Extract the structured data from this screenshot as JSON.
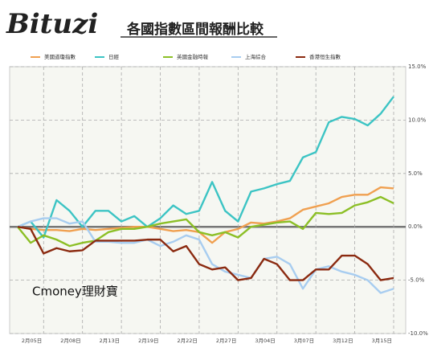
{
  "chart_data": {
    "type": "line",
    "brand": "Bituzi",
    "title": "各國指數區間報酬比較",
    "watermark": "Cmoney理財寶",
    "categories": [
      null,
      null,
      "2月05日",
      null,
      null,
      "2月08日",
      null,
      null,
      "2月13日",
      null,
      null,
      "2月19日",
      null,
      null,
      "2月22日",
      null,
      null,
      "2月27日",
      null,
      null,
      "3月04日",
      null,
      null,
      "3月07日",
      null,
      null,
      "3月12日",
      null,
      null,
      "3月15日"
    ],
    "series": [
      {
        "name": "美國道瓊指數",
        "color": "#f0a050",
        "values": [
          0,
          -0.2,
          -0.3,
          -0.3,
          -0.4,
          -0.2,
          -0.3,
          -0.2,
          -0.1,
          0,
          0,
          -0.2,
          -0.4,
          -0.3,
          -0.5,
          -1.5,
          -0.5,
          -0.2,
          0.4,
          0.3,
          0.5,
          0.8,
          1.6,
          1.9,
          2.2,
          2.8,
          3.0,
          3.0,
          3.7,
          3.6
        ]
      },
      {
        "name": "日經",
        "color": "#3cc4c4",
        "values": [
          0,
          0.5,
          -1,
          2.5,
          1.5,
          0,
          1.5,
          1.5,
          0.5,
          1,
          0,
          0.8,
          2,
          1.2,
          1.5,
          4.2,
          1.5,
          0.5,
          3.3,
          3.6,
          4,
          4.3,
          6.5,
          7,
          9.8,
          10.3,
          10.1,
          9.5,
          10.6,
          12.2
        ]
      },
      {
        "name": "英國金融時報",
        "color": "#8cbf26",
        "values": [
          0,
          -1.5,
          -0.8,
          -1.2,
          -1.8,
          -1.5,
          -1.3,
          -0.5,
          -0.2,
          -0.2,
          0,
          0.3,
          0.5,
          0.7,
          -0.5,
          -0.8,
          -0.5,
          -1,
          0,
          0.2,
          0.4,
          0.5,
          -0.2,
          1.3,
          1.2,
          1.3,
          2,
          2.3,
          2.8,
          2.2
        ]
      },
      {
        "name": "上海綜合",
        "color": "#a8cdf0",
        "values": [
          0,
          0.5,
          0.8,
          0.8,
          0.3,
          0.5,
          -1.4,
          -1.4,
          -1.5,
          -1.5,
          -1.2,
          -1.8,
          -1.4,
          -0.8,
          -1.2,
          -3.5,
          -4.2,
          -4.5,
          -4.8,
          -3,
          -2.8,
          -3.5,
          -5.8,
          -4,
          -3.7,
          -4.2,
          -4.5,
          -5,
          -6.2,
          -5.8
        ]
      },
      {
        "name": "香港恒生指數",
        "color": "#8b2a10",
        "values": [
          0,
          -0.2,
          -2.5,
          -2,
          -2.3,
          -2.2,
          -1.3,
          -1.3,
          -1.3,
          -1.3,
          -1.2,
          -1.2,
          -2.3,
          -1.8,
          -3.5,
          -4,
          -3.8,
          -5,
          -4.8,
          -3,
          -3.5,
          -5,
          -5,
          -4,
          -4,
          -2.7,
          -2.7,
          -3.5,
          -5,
          -4.8
        ]
      }
    ],
    "ylim": [
      -10,
      15
    ],
    "yticks": [
      {
        "value": -10,
        "label": "-10.0%"
      },
      {
        "value": -5,
        "label": "-5.0%"
      },
      {
        "value": 0,
        "label": "0.0%"
      },
      {
        "value": 5,
        "label": "5.0%"
      },
      {
        "value": 10,
        "label": "10.0%"
      },
      {
        "value": 15,
        "label": "15.0%"
      }
    ],
    "grid": true
  }
}
